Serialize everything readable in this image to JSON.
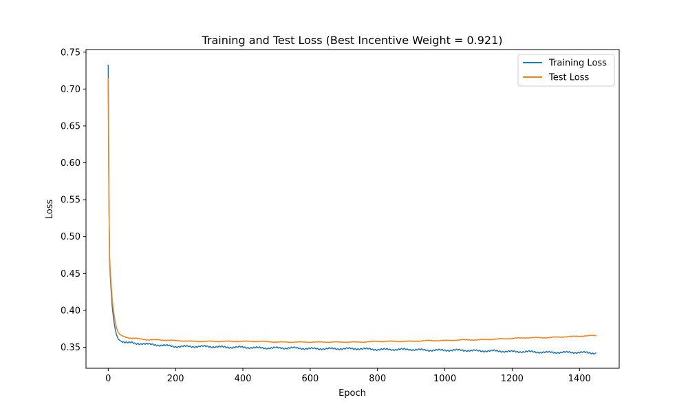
{
  "chart_data": {
    "type": "line",
    "title": "Training and Test Loss (Best Incentive Weight = 0.921)",
    "xlabel": "Epoch",
    "ylabel": "Loss",
    "xlim": [
      -66,
      1518
    ],
    "ylim": [
      0.3215,
      0.7535
    ],
    "xticks": [
      0,
      200,
      400,
      600,
      800,
      1000,
      1200,
      1400
    ],
    "yticks": [
      0.35,
      0.4,
      0.45,
      0.5,
      0.55,
      0.6,
      0.65,
      0.7,
      0.75
    ],
    "ytick_labels": [
      "0.35",
      "0.40",
      "0.45",
      "0.50",
      "0.55",
      "0.60",
      "0.65",
      "0.70",
      "0.75"
    ],
    "grid": false,
    "legend_position": "upper right",
    "series": [
      {
        "name": "Training Loss",
        "color": "#1f77b4",
        "x": [
          0,
          2,
          4,
          6,
          8,
          10,
          12,
          15,
          18,
          21,
          24,
          27,
          30,
          35,
          40,
          50,
          60,
          70,
          80,
          100,
          120,
          150,
          200,
          250,
          300,
          350,
          400,
          450,
          500,
          550,
          600,
          650,
          700,
          750,
          800,
          850,
          900,
          950,
          1000,
          1050,
          1100,
          1150,
          1200,
          1250,
          1300,
          1350,
          1400,
          1450
        ],
        "y": [
          0.733,
          0.56,
          0.47,
          0.448,
          0.432,
          0.418,
          0.405,
          0.392,
          0.382,
          0.374,
          0.368,
          0.364,
          0.361,
          0.359,
          0.358,
          0.357,
          0.356,
          0.356,
          0.355,
          0.355,
          0.354,
          0.353,
          0.351,
          0.351,
          0.351,
          0.35,
          0.35,
          0.349,
          0.349,
          0.349,
          0.348,
          0.348,
          0.348,
          0.348,
          0.347,
          0.347,
          0.347,
          0.346,
          0.346,
          0.346,
          0.345,
          0.345,
          0.344,
          0.344,
          0.343,
          0.343,
          0.343,
          0.342
        ]
      },
      {
        "name": "Test Loss",
        "color": "#ff7f0e",
        "x": [
          0,
          2,
          4,
          6,
          8,
          10,
          12,
          15,
          18,
          21,
          24,
          27,
          30,
          35,
          40,
          50,
          60,
          70,
          80,
          100,
          120,
          150,
          200,
          250,
          300,
          350,
          400,
          450,
          500,
          550,
          600,
          650,
          700,
          750,
          800,
          850,
          900,
          950,
          1000,
          1050,
          1100,
          1150,
          1200,
          1250,
          1300,
          1350,
          1400,
          1450
        ],
        "y": [
          0.715,
          0.56,
          0.475,
          0.455,
          0.44,
          0.427,
          0.415,
          0.402,
          0.392,
          0.384,
          0.378,
          0.373,
          0.37,
          0.367,
          0.366,
          0.364,
          0.363,
          0.362,
          0.362,
          0.361,
          0.36,
          0.36,
          0.359,
          0.358,
          0.358,
          0.358,
          0.358,
          0.358,
          0.357,
          0.357,
          0.357,
          0.357,
          0.357,
          0.357,
          0.358,
          0.358,
          0.358,
          0.359,
          0.359,
          0.36,
          0.36,
          0.361,
          0.362,
          0.363,
          0.363,
          0.364,
          0.365,
          0.366
        ]
      }
    ]
  }
}
